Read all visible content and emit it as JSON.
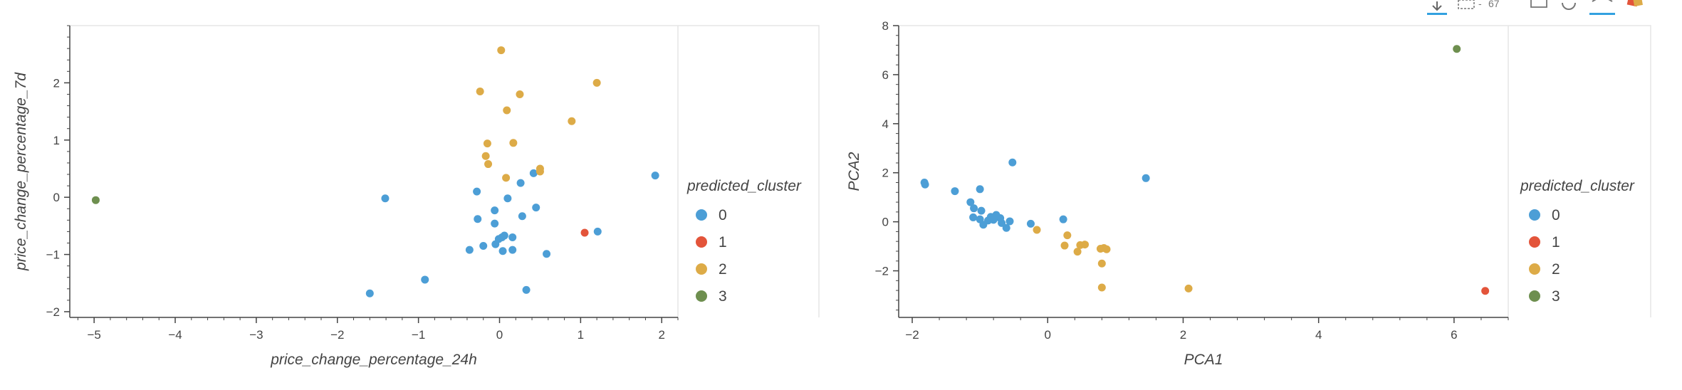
{
  "colors": {
    "cluster_0": "#4c9ed6",
    "cluster_1": "#e3543a",
    "cluster_2": "#ddab47",
    "cluster_3": "#6e8f4f",
    "axis": "#444444",
    "frame": "#e5e5e5",
    "toolbar_active": "#33a1e0"
  },
  "toolbar": {
    "icons": [
      "pan-icon",
      "box-zoom-icon",
      "wheel-zoom-icon",
      "save-icon",
      "reset-icon",
      "hover-icon",
      "bokeh-logo-icon"
    ]
  },
  "legend": {
    "title": "predicted_cluster",
    "entries": [
      "0",
      "1",
      "2",
      "3"
    ]
  },
  "chart_data": [
    {
      "type": "scatter",
      "xlabel": "price_change_percentage_24h",
      "ylabel": "price_change_percentage_7d",
      "xlim": [
        -5.3,
        2.2
      ],
      "ylim": [
        -2.1,
        3.0
      ],
      "xticks": [
        -5,
        -4,
        -3,
        -2,
        -1,
        0,
        1,
        2
      ],
      "yticks": [
        -2,
        -1,
        0,
        1,
        2
      ],
      "legend_title": "predicted_cluster",
      "legend_position": "right",
      "grid": false,
      "series": [
        {
          "name": "0",
          "points": [
            [
              -1.6,
              -1.68
            ],
            [
              -1.41,
              -0.02
            ],
            [
              -0.92,
              -1.44
            ],
            [
              -0.37,
              -0.92
            ],
            [
              -0.27,
              -0.38
            ],
            [
              -0.28,
              0.1
            ],
            [
              -0.2,
              -0.85
            ],
            [
              -0.06,
              -0.46
            ],
            [
              -0.06,
              -0.23
            ],
            [
              -0.05,
              -0.82
            ],
            [
              -0.01,
              -0.73
            ],
            [
              0.03,
              -0.7
            ],
            [
              0.06,
              -0.67
            ],
            [
              0.04,
              -0.94
            ],
            [
              0.1,
              -0.02
            ],
            [
              0.16,
              -0.7
            ],
            [
              0.16,
              -0.92
            ],
            [
              0.26,
              0.25
            ],
            [
              0.28,
              -0.33
            ],
            [
              0.33,
              -1.62
            ],
            [
              0.42,
              0.42
            ],
            [
              0.45,
              -0.18
            ],
            [
              0.58,
              -0.99
            ],
            [
              1.21,
              -0.6
            ],
            [
              1.92,
              0.38
            ]
          ]
        },
        {
          "name": "1",
          "points": [
            [
              1.05,
              -0.62
            ]
          ]
        },
        {
          "name": "2",
          "points": [
            [
              0.02,
              2.57
            ],
            [
              1.2,
              2.0
            ],
            [
              -0.24,
              1.85
            ],
            [
              0.25,
              1.8
            ],
            [
              0.09,
              1.52
            ],
            [
              0.89,
              1.33
            ],
            [
              0.17,
              0.95
            ],
            [
              -0.15,
              0.94
            ],
            [
              -0.17,
              0.72
            ],
            [
              -0.14,
              0.58
            ],
            [
              0.5,
              0.5
            ],
            [
              0.5,
              0.45
            ],
            [
              0.08,
              0.34
            ]
          ]
        },
        {
          "name": "3",
          "points": [
            [
              -4.98,
              -0.05
            ]
          ]
        }
      ]
    },
    {
      "type": "scatter",
      "xlabel": "PCA1",
      "ylabel": "PCA2",
      "xlim": [
        -2.2,
        6.8
      ],
      "ylim": [
        -3.9,
        8.0
      ],
      "xticks": [
        -2,
        0,
        2,
        4,
        6
      ],
      "yticks": [
        -2,
        0,
        2,
        4,
        6,
        8
      ],
      "legend_title": "predicted_cluster",
      "legend_position": "right",
      "grid": false,
      "series": [
        {
          "name": "0",
          "points": [
            [
              -1.82,
              1.6
            ],
            [
              -1.81,
              1.52
            ],
            [
              -1.37,
              1.25
            ],
            [
              -1.0,
              1.33
            ],
            [
              -0.52,
              2.42
            ],
            [
              1.45,
              1.78
            ],
            [
              -1.14,
              0.8
            ],
            [
              -1.09,
              0.55
            ],
            [
              -1.1,
              0.18
            ],
            [
              -0.98,
              0.45
            ],
            [
              -1.0,
              0.1
            ],
            [
              -0.95,
              -0.12
            ],
            [
              -0.88,
              0.05
            ],
            [
              -0.84,
              0.2
            ],
            [
              -0.8,
              0.08
            ],
            [
              -0.76,
              0.28
            ],
            [
              -0.7,
              0.15
            ],
            [
              -0.68,
              -0.05
            ],
            [
              -0.61,
              -0.25
            ],
            [
              -0.56,
              0.02
            ],
            [
              -0.25,
              -0.08
            ],
            [
              0.23,
              0.1
            ]
          ]
        },
        {
          "name": "1",
          "points": [
            [
              6.46,
              -2.82
            ]
          ]
        },
        {
          "name": "2",
          "points": [
            [
              -0.16,
              -0.33
            ],
            [
              0.29,
              -0.55
            ],
            [
              0.25,
              -0.97
            ],
            [
              0.44,
              -1.22
            ],
            [
              0.48,
              -0.95
            ],
            [
              0.55,
              -0.93
            ],
            [
              0.78,
              -1.1
            ],
            [
              0.83,
              -1.07
            ],
            [
              0.87,
              -1.12
            ],
            [
              0.8,
              -1.7
            ],
            [
              0.8,
              -2.68
            ],
            [
              2.08,
              -2.72
            ]
          ]
        },
        {
          "name": "3",
          "points": [
            [
              6.04,
              7.05
            ]
          ]
        }
      ]
    }
  ]
}
